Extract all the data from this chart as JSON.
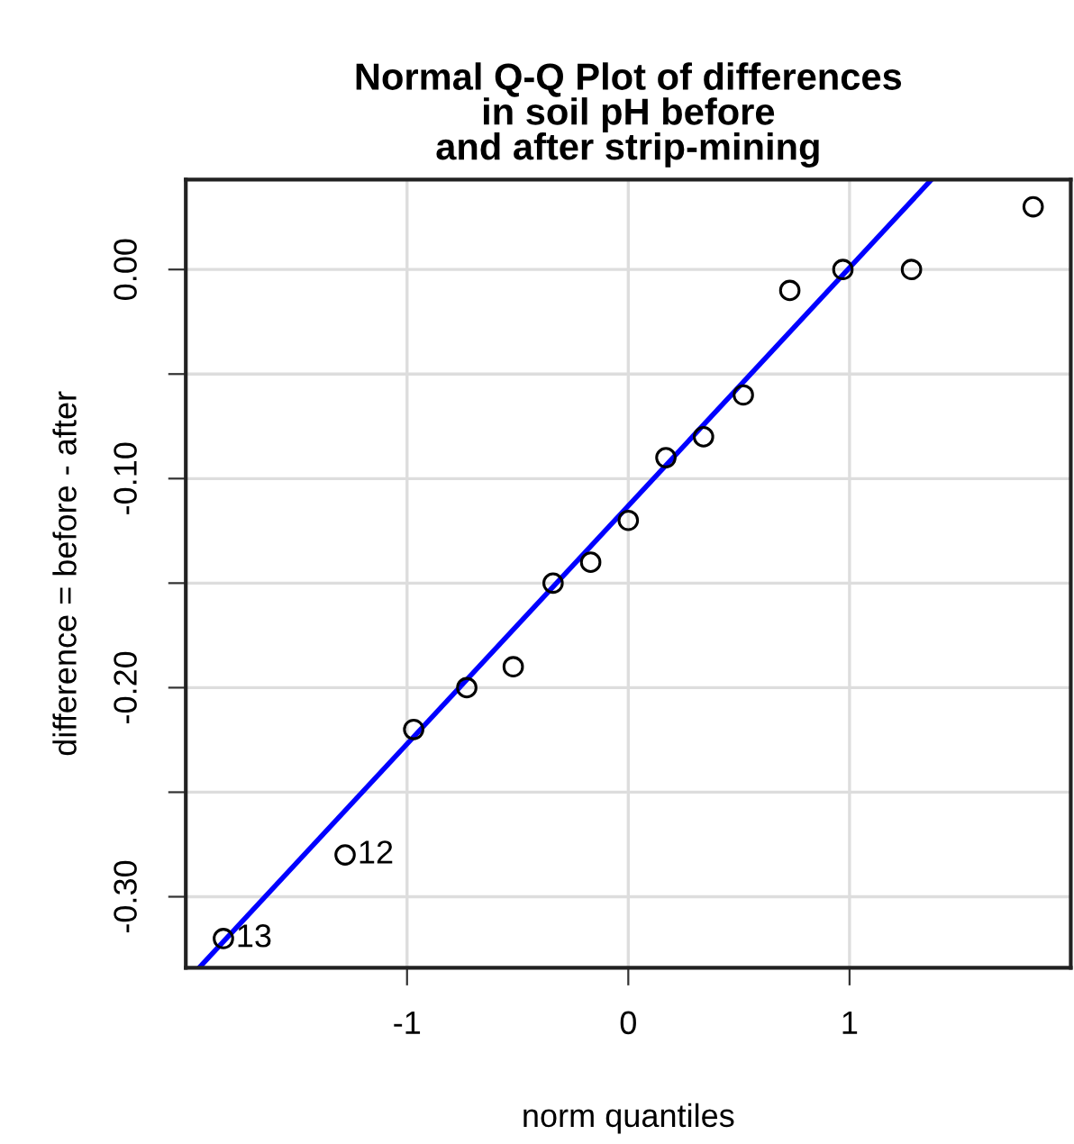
{
  "chart_data": {
    "type": "scatter",
    "title": "Normal Q-Q Plot of differences\nin soil pH before\nand after strip-mining",
    "xlabel": "norm quantiles",
    "ylabel": "difference = before - after",
    "series": [
      {
        "color": "#000000",
        "marker": "circle",
        "x": [
          -1.83,
          -1.28,
          -0.97,
          -0.73,
          -0.52,
          -0.34,
          -0.17,
          0,
          0.17,
          0.34,
          0.52,
          0.73,
          0.97,
          1.28,
          1.83
        ],
        "values": [
          -0.32,
          -0.28,
          -0.22,
          -0.2,
          -0.19,
          -0.15,
          -0.14,
          -0.12,
          -0.09,
          -0.08,
          -0.06,
          -0.01,
          0.0,
          0.0,
          0.03
        ]
      },
      {
        "type": "line",
        "color": "#0000ff",
        "marker": "none",
        "line_style": "solid",
        "x": [
          -1.94,
          1.37
        ],
        "values": [
          -0.334,
          0.043
        ]
      }
    ],
    "annotations": [
      {
        "text": "12",
        "x": -1.28,
        "y": -0.28
      },
      {
        "text": "13",
        "x": -1.83,
        "y": -0.32
      }
    ],
    "xlim": [
      -2.0,
      2.0
    ],
    "xticks": [
      -1,
      0,
      1
    ],
    "ylim": [
      -0.334,
      0.043
    ],
    "yticks": [
      {
        "value": -0.3,
        "label": "-0.30"
      },
      {
        "value": -0.25,
        "label": null
      },
      {
        "value": -0.2,
        "label": "-0.20"
      },
      {
        "value": -0.15,
        "label": null
      },
      {
        "value": -0.1,
        "label": "-0.10"
      },
      {
        "value": -0.05,
        "label": null
      },
      {
        "value": 0.0,
        "label": "0.00"
      }
    ],
    "grid": true,
    "legend": false
  }
}
